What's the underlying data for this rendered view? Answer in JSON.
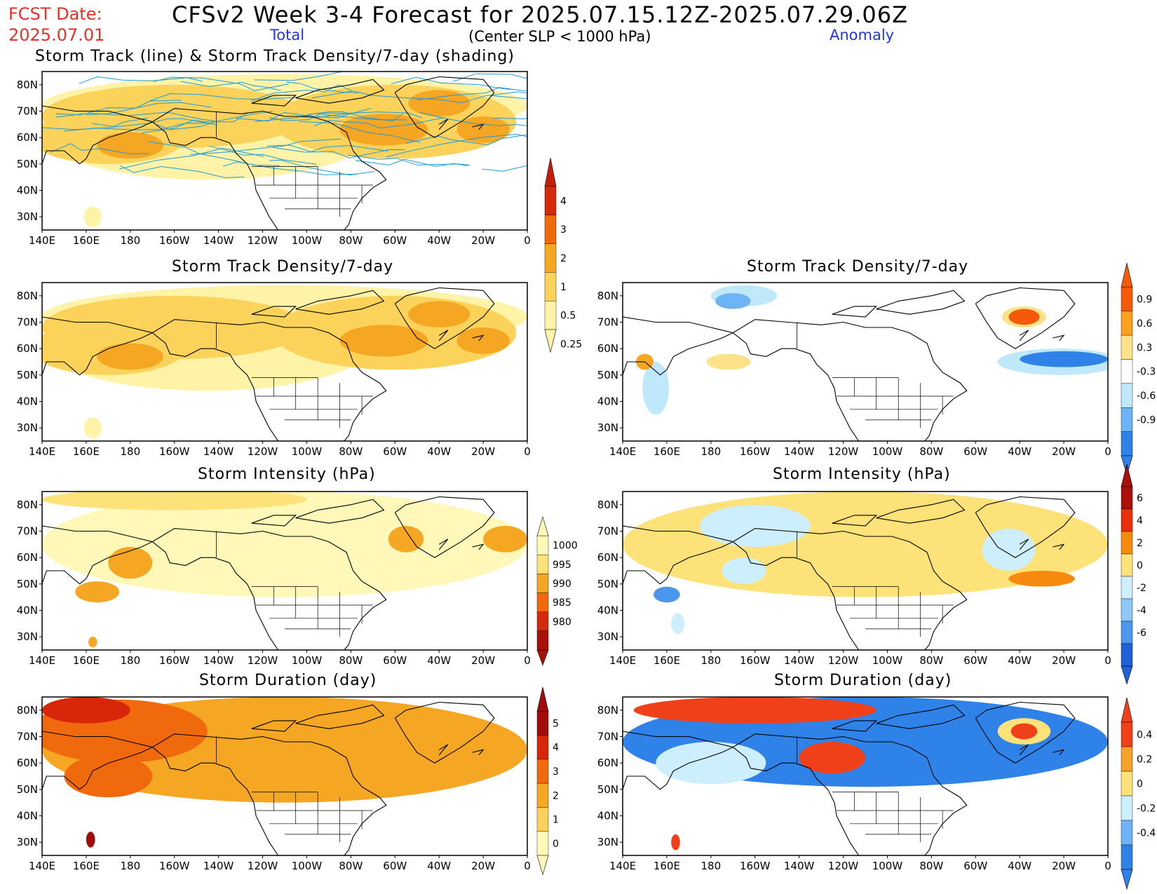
{
  "header": {
    "fcst_label": "FCST Date:",
    "fcst_date": "2025.07.01",
    "title": "CFSv2 Week 3-4 Forecast for 2025.07.15.12Z-2025.07.29.06Z",
    "total_label": "Total",
    "anomaly_label": "Anomaly",
    "criteria": "(Center SLP < 1000 hPa)"
  },
  "axes": {
    "lon_labels": [
      "140E",
      "160E",
      "180",
      "160W",
      "140W",
      "120W",
      "100W",
      "80W",
      "60W",
      "40W",
      "20W",
      "0"
    ],
    "lat_labels": [
      "80N",
      "70N",
      "60N",
      "50N",
      "40N",
      "30N"
    ]
  },
  "panels": {
    "track_total_title": "Storm Track (line) & Storm Track Density/7-day (shading)",
    "density_total_title": "Storm Track Density/7-day",
    "density_anom_title": "Storm Track Density/7-day",
    "intensity_total_title": "Storm Intensity (hPa)",
    "intensity_anom_title": "Storm Intensity (hPa)",
    "duration_total_title": "Storm Duration (day)",
    "duration_anom_title": "Storm Duration (day)"
  },
  "colorbars": {
    "density_total": {
      "labels": [
        "4",
        "3",
        "2",
        "1",
        "0.5",
        "0.25"
      ],
      "colors": [
        "#d42a0c",
        "#f06a0d",
        "#f5a623",
        "#fcd35a",
        "#fff3a8"
      ],
      "top_color": "#c41e0a"
    },
    "density_anom": {
      "labels": [
        "0.9",
        "0.6",
        "0.3",
        "-0.3",
        "-0.6",
        "-0.9"
      ],
      "colors": [
        "#f55a0a",
        "#fba11e",
        "#fde28a",
        "#ffffff",
        "#bfe9fb",
        "#6cb4f5",
        "#2f82e8"
      ]
    },
    "intensity_total": {
      "labels": [
        "1000",
        "995",
        "990",
        "985",
        "980"
      ],
      "colors": [
        "#fff8b8",
        "#fde27a",
        "#f5a623",
        "#f06a0d",
        "#d42a0c",
        "#a8100a"
      ]
    },
    "intensity_anom": {
      "labels": [
        "6",
        "4",
        "2",
        "0",
        "-2",
        "-4",
        "-6"
      ],
      "colors": [
        "#a8100a",
        "#e8300a",
        "#f58a0f",
        "#fde27a",
        "#cdeefc",
        "#8ec8f6",
        "#4a97ec",
        "#2260d8"
      ]
    },
    "duration_total": {
      "labels": [
        "5",
        "4",
        "3",
        "2",
        "1",
        "0"
      ],
      "colors": [
        "#a00c0c",
        "#d8260a",
        "#f06a0d",
        "#f5a623",
        "#fcd35a",
        "#fff8b8"
      ]
    },
    "duration_anom": {
      "labels": [
        "0.4",
        "0.2",
        "0",
        "-0.2",
        "-0.4"
      ],
      "colors": [
        "#f0401a",
        "#f8a22a",
        "#fde27a",
        "#cdeefc",
        "#6cb4f5",
        "#2f82e8"
      ]
    }
  }
}
